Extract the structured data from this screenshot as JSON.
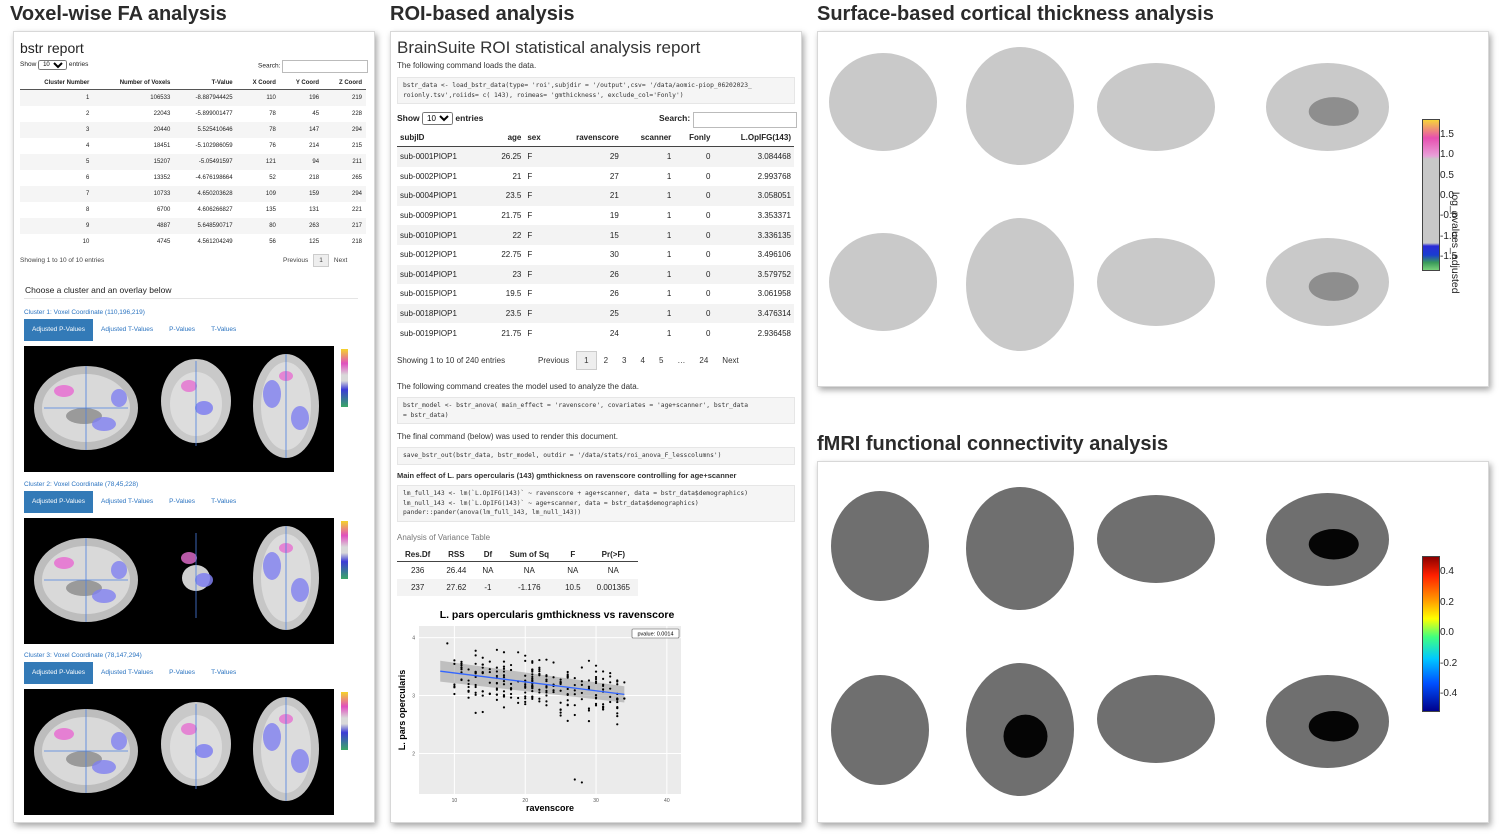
{
  "sections": {
    "voxel": "Voxel-wise FA analysis",
    "roi": "ROI-based analysis",
    "surface": "Surface-based cortical thickness analysis",
    "fmri": "fMRI functional connectivity analysis"
  },
  "fa": {
    "title": "bstr report",
    "show": "Show",
    "entries_value": "10",
    "entries": "entries",
    "search": "Search:",
    "columns": [
      "Cluster Number",
      "Number of Voxels",
      "T-Value",
      "X Coord",
      "Y Coord",
      "Z Coord"
    ],
    "rows": [
      [
        "1",
        "106533",
        "-8.887944425",
        "110",
        "196",
        "219"
      ],
      [
        "2",
        "22043",
        "-5.899001477",
        "78",
        "45",
        "228"
      ],
      [
        "3",
        "20440",
        "5.525410646",
        "78",
        "147",
        "294"
      ],
      [
        "4",
        "18451",
        "-5.102986059",
        "76",
        "214",
        "215"
      ],
      [
        "5",
        "15207",
        "-5.05491597",
        "121",
        "94",
        "211"
      ],
      [
        "6",
        "13352",
        "-4.676198664",
        "52",
        "218",
        "265"
      ],
      [
        "7",
        "10733",
        "4.650203628",
        "109",
        "159",
        "294"
      ],
      [
        "8",
        "6700",
        "4.606266827",
        "135",
        "131",
        "221"
      ],
      [
        "9",
        "4887",
        "5.648590717",
        "80",
        "263",
        "217"
      ],
      [
        "10",
        "4745",
        "4.561204249",
        "56",
        "125",
        "218"
      ]
    ],
    "info": "Showing 1 to 10 of 10 entries",
    "prev": "Previous",
    "page": "1",
    "next": "Next",
    "choose": "Choose a cluster and an overlay below",
    "tabs": [
      "Adjusted P-Values",
      "Adjusted T-Values",
      "P-Values",
      "T-Values"
    ],
    "clusters": [
      "Cluster 1: Voxel Coordinate (110,196,219)",
      "Cluster 2: Voxel Coordinate (78,45,228)",
      "Cluster 3: Voxel Coordinate (78,147,294)"
    ],
    "cbar_label": "log_pvalues_adjusted"
  },
  "roi": {
    "title": "BrainSuite ROI statistical analysis report",
    "p1": "The following command loads the data.",
    "code1": "bstr_data <- load_bstr_data(type= 'roi',subjdir = '/output',csv= '/data/aomic-piop_06202023_\nroionly.tsv',roiids= c( 143), roimeas= 'gmthickness', exclude_col='Fonly')",
    "show": "Show",
    "entries_value": "10",
    "entries": "entries",
    "search": "Search:",
    "columns": [
      "subjID",
      "age",
      "sex",
      "ravenscore",
      "scanner",
      "Fonly",
      "L.OpIFG(143)"
    ],
    "rows": [
      [
        "sub-0001PIOP1",
        "26.25",
        "F",
        "29",
        "1",
        "0",
        "3.084468"
      ],
      [
        "sub-0002PIOP1",
        "21",
        "F",
        "27",
        "1",
        "0",
        "2.993768"
      ],
      [
        "sub-0004PIOP1",
        "23.5",
        "F",
        "21",
        "1",
        "0",
        "3.058051"
      ],
      [
        "sub-0009PIOP1",
        "21.75",
        "F",
        "19",
        "1",
        "0",
        "3.353371"
      ],
      [
        "sub-0010PIOP1",
        "22",
        "F",
        "15",
        "1",
        "0",
        "3.336135"
      ],
      [
        "sub-0012PIOP1",
        "22.75",
        "F",
        "30",
        "1",
        "0",
        "3.496106"
      ],
      [
        "sub-0014PIOP1",
        "23",
        "F",
        "26",
        "1",
        "0",
        "3.579752"
      ],
      [
        "sub-0015PIOP1",
        "19.5",
        "F",
        "26",
        "1",
        "0",
        "3.061958"
      ],
      [
        "sub-0018PIOP1",
        "23.5",
        "F",
        "25",
        "1",
        "0",
        "3.476314"
      ],
      [
        "sub-0019PIOP1",
        "21.75",
        "F",
        "24",
        "1",
        "0",
        "2.936458"
      ]
    ],
    "info": "Showing 1 to 10 of 240 entries",
    "pages": [
      "Previous",
      "1",
      "2",
      "3",
      "4",
      "5",
      "…",
      "24",
      "Next"
    ],
    "p2": "The following command creates the model used to analyze the data.",
    "code2": "bstr_model <- bstr_anova( main_effect = 'ravenscore', covariates = 'age+scanner', bstr_data\n= bstr_data)",
    "p3": "The final command (below) was used to render this document.",
    "code3": "save_bstr_out(bstr_data, bstr_model, outdir = '/data/stats/roi_anova_F_lesscolumns')",
    "p4": "Main effect of L. pars opercularis (143) gmthickness on ravenscore controlling for age+scanner",
    "code4": "lm_full_143 <- lm(`L.OpIFG(143)` ~ ravenscore + age+scanner, data = bstr_data$demographics)\nlm_null_143 <- lm(`L.OpIFG(143)` ~ age+scanner, data = bstr_data$demographics)\npander::pander(anova(lm_full_143, lm_null_143))",
    "anova_caption": "Analysis of Variance Table",
    "anova_cols": [
      "Res.Df",
      "RSS",
      "Df",
      "Sum of Sq",
      "F",
      "Pr(>F)"
    ],
    "anova_rows": [
      [
        "236",
        "26.44",
        "NA",
        "NA",
        "NA",
        "NA"
      ],
      [
        "237",
        "27.62",
        "-1",
        "-1.176",
        "10.5",
        "0.001365"
      ]
    ]
  },
  "chart_data": {
    "type": "scatter",
    "title": "L. pars opercularis gmthickness vs ravenscore",
    "xlabel": "ravenscore",
    "ylabel": "L. pars opercularis",
    "xlim": [
      5,
      42
    ],
    "ylim": [
      1.3,
      4.2
    ],
    "xticks": [
      10,
      20,
      30,
      40
    ],
    "yticks": [
      2,
      3,
      4
    ],
    "annotation": "pvalue: 0.0014",
    "fit": {
      "x": [
        8,
        34
      ],
      "y": [
        3.42,
        3.02
      ]
    }
  },
  "surface": {
    "cbar_ticks": [
      "1.5",
      "1.0",
      "0.5",
      "0.0",
      "-0.5",
      "-1.0",
      "-1.5"
    ],
    "cbar_label": "log_pvalues_adjusted"
  },
  "fmri": {
    "cbar_ticks": [
      "0.4",
      "0.2",
      "0.0",
      "-0.2",
      "-0.4"
    ]
  }
}
